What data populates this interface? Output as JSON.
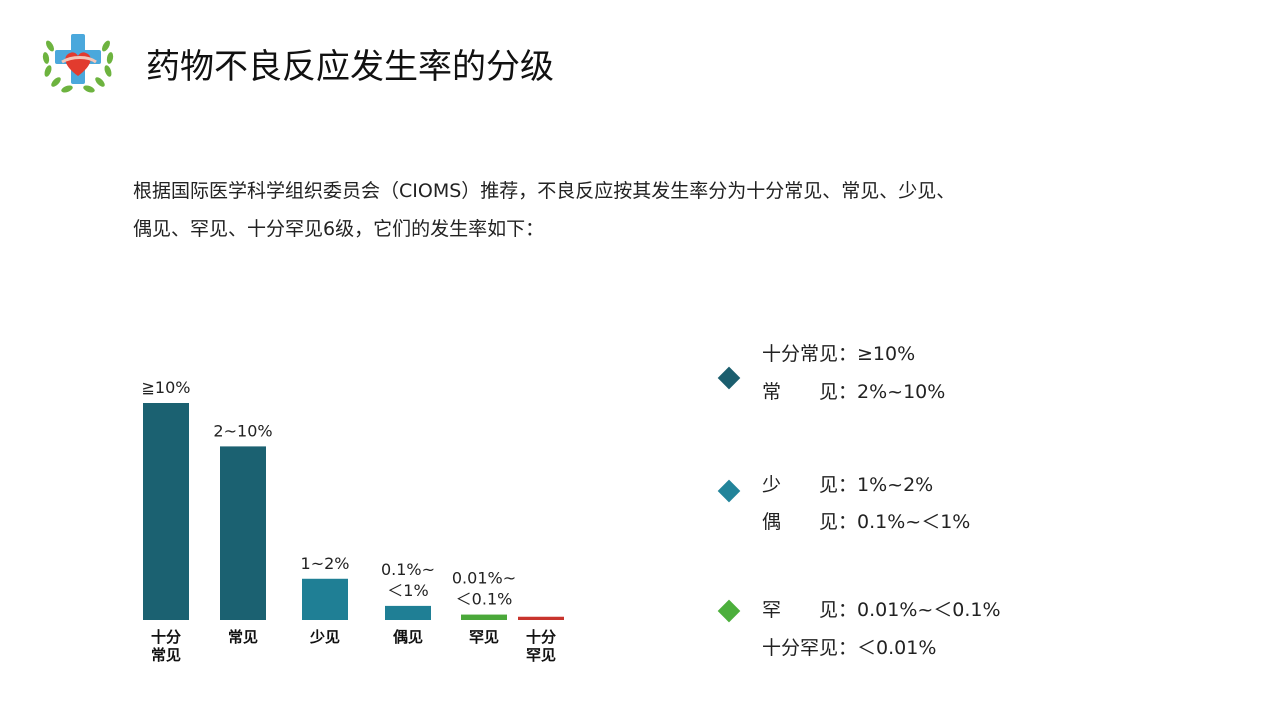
{
  "header": {
    "title": "药物不良反应发生率的分级"
  },
  "intro": {
    "line1": "根据国际医学科学组织委员会（CIOMS）推荐，不良反应按其发生率分为十分常见、常见、少见、",
    "line2": "偶见、罕见、十分罕见6级，它们的发生率如下："
  },
  "chart_data": {
    "type": "bar",
    "categories": [
      "十分常见",
      "常见",
      "少见",
      "偶见",
      "罕见",
      "十分罕见"
    ],
    "category_lines": [
      [
        "十分",
        "常见"
      ],
      [
        "常见"
      ],
      [
        "少见"
      ],
      [
        "偶见"
      ],
      [
        "罕见"
      ],
      [
        "十分",
        "罕见"
      ]
    ],
    "values": [
      100,
      80,
      19,
      6.5,
      2.5,
      1.5
    ],
    "value_labels": [
      [
        "≧10%"
      ],
      [
        "2~10%"
      ],
      [
        "1~2%"
      ],
      [
        "0.1%~",
        "＜1%"
      ],
      [
        "0.01%~",
        "＜0.1%"
      ],
      []
    ],
    "colors": [
      "#1b6171",
      "#1b6171",
      "#1f7f95",
      "#1f7f95",
      "#4aa83a",
      "#c8342d"
    ],
    "ylim": [
      0,
      100
    ]
  },
  "legend": {
    "groups": [
      {
        "color": "#1b5e6e",
        "lines": [
          {
            "label": "十分常见",
            "value": "：≥10%"
          },
          {
            "label": "常　　见",
            "value": "：2%~10%"
          }
        ]
      },
      {
        "color": "#22849a",
        "lines": [
          {
            "label": "少　　见",
            "value": "：1%~2%"
          },
          {
            "label": "偶　　见",
            "value": "：0.1%~＜1%"
          }
        ]
      },
      {
        "color": "#4caf3c",
        "lines": [
          {
            "label": "罕　　见",
            "value": "：0.01%~＜0.1%"
          },
          {
            "label": "十分罕见",
            "value": "：＜0.01%"
          }
        ]
      }
    ]
  }
}
